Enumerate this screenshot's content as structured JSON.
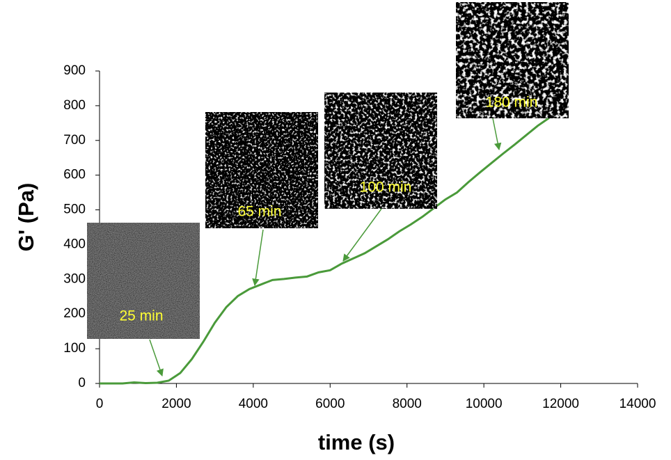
{
  "chart_data": {
    "type": "line",
    "xlabel": "time (s)",
    "ylabel": "G' (Pa)",
    "x": [
      0,
      600,
      900,
      1200,
      1500,
      1800,
      2100,
      2400,
      2700,
      3000,
      3300,
      3600,
      3900,
      4200,
      4500,
      4800,
      5100,
      5400,
      5700,
      6000,
      6300,
      6600,
      6900,
      7200,
      7500,
      7800,
      8100,
      8400,
      8700,
      9000,
      9300,
      9600,
      9900,
      10200,
      10500,
      10800,
      11100,
      11400,
      11700
    ],
    "values": [
      0,
      0,
      3,
      1,
      2,
      8,
      30,
      70,
      120,
      175,
      220,
      252,
      272,
      285,
      298,
      301,
      305,
      308,
      320,
      326,
      345,
      360,
      375,
      395,
      415,
      438,
      458,
      480,
      505,
      530,
      550,
      580,
      608,
      635,
      662,
      688,
      715,
      742,
      765
    ],
    "color": "#4a9a3a",
    "xlim": [
      0,
      14000
    ],
    "xticks": [
      0,
      2000,
      4000,
      6000,
      8000,
      10000,
      12000,
      14000
    ],
    "ylim": [
      0,
      900
    ],
    "yticks": [
      0,
      100,
      200,
      300,
      400,
      500,
      600,
      700,
      800,
      900
    ],
    "annotations": [
      {
        "text": "25 min"
      },
      {
        "text": "65 min"
      },
      {
        "text": "100 min"
      },
      {
        "text": "180 min"
      }
    ]
  }
}
